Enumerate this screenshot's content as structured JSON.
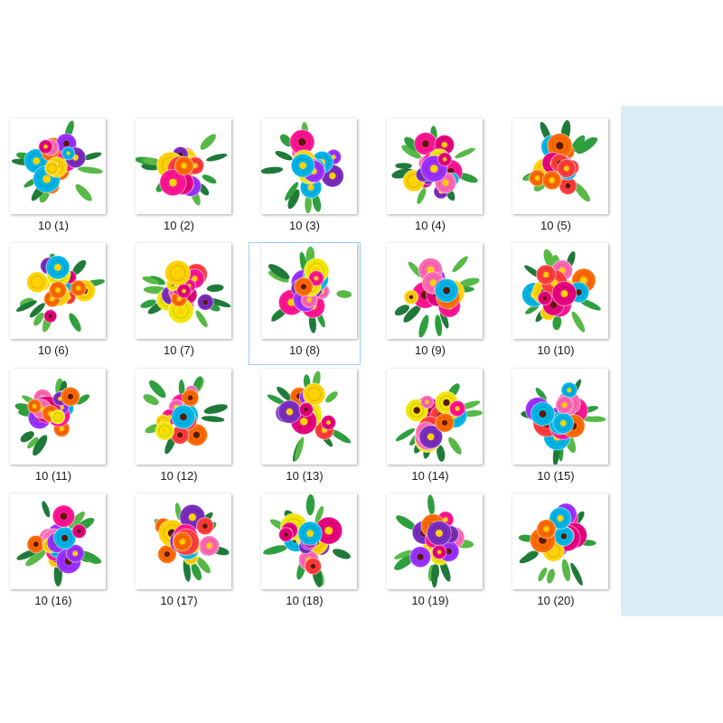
{
  "colors": {
    "side_panel": "#daeef5",
    "selection_border": "#99d1ff",
    "flower_palette": [
      "#e6007e",
      "#ff1493",
      "#ffd200",
      "#ff6a00",
      "#9b30ff",
      "#ff3c3c",
      "#00b4e6",
      "#ff69b4",
      "#7b2cbf",
      "#f2e600"
    ],
    "leaf_palette": [
      "#2e9e3e",
      "#58b947",
      "#1f7a3a"
    ]
  },
  "files": [
    {
      "name": "10 (1)",
      "icon": "flower-bouquet-thumbnail"
    },
    {
      "name": "10 (2)",
      "icon": "flower-bouquet-thumbnail"
    },
    {
      "name": "10 (3)",
      "icon": "flower-bouquet-thumbnail"
    },
    {
      "name": "10 (4)",
      "icon": "flower-bouquet-thumbnail"
    },
    {
      "name": "10 (5)",
      "icon": "flower-bouquet-thumbnail"
    },
    {
      "name": "10 (6)",
      "icon": "flower-bouquet-thumbnail"
    },
    {
      "name": "10 (7)",
      "icon": "flower-bouquet-thumbnail"
    },
    {
      "name": "10 (8)",
      "icon": "flower-bouquet-thumbnail",
      "selected": true
    },
    {
      "name": "10 (9)",
      "icon": "flower-bouquet-thumbnail"
    },
    {
      "name": "10 (10)",
      "icon": "flower-bouquet-thumbnail"
    },
    {
      "name": "10 (11)",
      "icon": "flower-bouquet-thumbnail"
    },
    {
      "name": "10 (12)",
      "icon": "flower-bouquet-thumbnail"
    },
    {
      "name": "10 (13)",
      "icon": "flower-bouquet-thumbnail"
    },
    {
      "name": "10 (14)",
      "icon": "flower-bouquet-thumbnail"
    },
    {
      "name": "10 (15)",
      "icon": "flower-bouquet-thumbnail"
    },
    {
      "name": "10 (16)",
      "icon": "flower-bouquet-thumbnail"
    },
    {
      "name": "10 (17)",
      "icon": "flower-bouquet-thumbnail"
    },
    {
      "name": "10 (18)",
      "icon": "flower-bouquet-thumbnail"
    },
    {
      "name": "10 (19)",
      "icon": "flower-bouquet-thumbnail"
    },
    {
      "name": "10 (20)",
      "icon": "flower-bouquet-thumbnail"
    }
  ]
}
